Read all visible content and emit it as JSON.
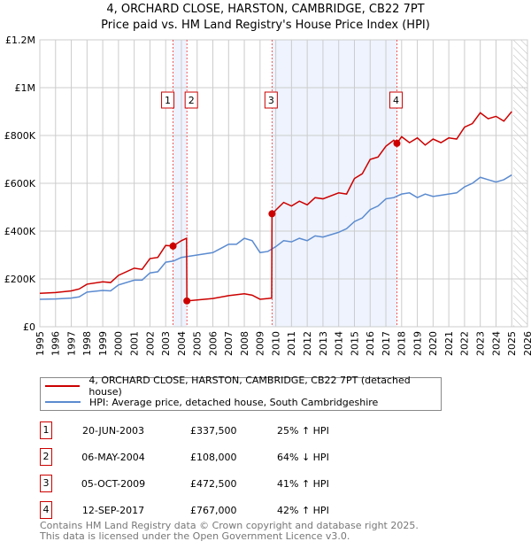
{
  "chart_data": {
    "type": "line",
    "title": "4, ORCHARD CLOSE, HARSTON, CAMBRIDGE, CB22 7PT",
    "subtitle": "Price paid vs. HM Land Registry's House Price Index (HPI)",
    "xlim": [
      1995,
      2026
    ],
    "ylim": [
      0,
      1200000
    ],
    "x_ticks": [
      "1995",
      "1996",
      "1997",
      "1998",
      "1999",
      "2000",
      "2001",
      "2002",
      "2003",
      "2004",
      "2005",
      "2006",
      "2007",
      "2008",
      "2009",
      "2010",
      "2011",
      "2012",
      "2013",
      "2014",
      "2015",
      "2016",
      "2017",
      "2018",
      "2019",
      "2020",
      "2021",
      "2022",
      "2023",
      "2024",
      "2025",
      "2026"
    ],
    "y_ticks": [
      {
        "v": 0,
        "label": "£0"
      },
      {
        "v": 200000,
        "label": "£200K"
      },
      {
        "v": 400000,
        "label": "£400K"
      },
      {
        "v": 600000,
        "label": "£600K"
      },
      {
        "v": 800000,
        "label": "£800K"
      },
      {
        "v": 1000000,
        "label": "£1M"
      },
      {
        "v": 1200000,
        "label": "£1.2M"
      }
    ],
    "series": [
      {
        "name": "4, ORCHARD CLOSE, HARSTON, CAMBRIDGE, CB22 7PT (detached house)",
        "color": "#cc0000",
        "x": [
          1995,
          1996,
          1997,
          1997.5,
          1998,
          1999,
          1999.5,
          2000,
          2001,
          2001.5,
          2002,
          2002.5,
          2003,
          2003.47,
          2004,
          2004.33,
          2004.35,
          2005,
          2006,
          2007,
          2008,
          2008.5,
          2009,
          2009.5,
          2009.74,
          2009.76,
          2010.5,
          2011,
          2011.5,
          2012,
          2012.5,
          2013,
          2014,
          2014.5,
          2015,
          2015.5,
          2016,
          2016.5,
          2017,
          2017.5,
          2017.7,
          2018,
          2018.5,
          2019,
          2019.5,
          2020,
          2020.5,
          2021,
          2021.5,
          2022,
          2022.5,
          2023,
          2023.5,
          2024,
          2024.5,
          2025
        ],
        "y": [
          140000,
          143000,
          150000,
          158000,
          178000,
          188000,
          185000,
          215000,
          245000,
          240000,
          285000,
          290000,
          340000,
          337500,
          360000,
          370000,
          108000,
          112000,
          118000,
          130000,
          138000,
          132000,
          115000,
          118000,
          120000,
          472500,
          520000,
          505000,
          525000,
          510000,
          540000,
          535000,
          560000,
          555000,
          620000,
          640000,
          700000,
          710000,
          755000,
          780000,
          767000,
          795000,
          770000,
          790000,
          760000,
          785000,
          770000,
          790000,
          785000,
          835000,
          850000,
          895000,
          870000,
          880000,
          860000,
          900000
        ]
      },
      {
        "name": "HPI: Average price, detached house, South Cambridgeshire",
        "color": "#5b8bd0",
        "x": [
          1995,
          1996,
          1997,
          1997.5,
          1998,
          1999,
          1999.5,
          2000,
          2001,
          2001.5,
          2002,
          2002.5,
          2003,
          2003.5,
          2004,
          2005,
          2006,
          2007,
          2007.5,
          2008,
          2008.5,
          2009,
          2009.5,
          2010,
          2010.5,
          2011,
          2011.5,
          2012,
          2012.5,
          2013,
          2014,
          2014.5,
          2015,
          2015.5,
          2016,
          2016.5,
          2017,
          2017.5,
          2018,
          2018.5,
          2019,
          2019.5,
          2020,
          2020.5,
          2021,
          2021.5,
          2022,
          2022.5,
          2023,
          2023.5,
          2024,
          2024.5,
          2025
        ],
        "y": [
          115000,
          116000,
          120000,
          125000,
          145000,
          152000,
          150000,
          175000,
          195000,
          195000,
          225000,
          230000,
          270000,
          275000,
          290000,
          300000,
          310000,
          345000,
          345000,
          370000,
          360000,
          310000,
          315000,
          335000,
          360000,
          355000,
          370000,
          360000,
          380000,
          375000,
          395000,
          410000,
          440000,
          455000,
          490000,
          505000,
          535000,
          540000,
          555000,
          560000,
          540000,
          555000,
          545000,
          550000,
          555000,
          560000,
          585000,
          600000,
          625000,
          615000,
          605000,
          615000,
          635000
        ]
      }
    ],
    "sales": [
      {
        "label": "1",
        "x": 2003.47,
        "y": 337500
      },
      {
        "label": "2",
        "x": 2004.35,
        "y": 108000
      },
      {
        "label": "3",
        "x": 2009.76,
        "y": 472500
      },
      {
        "label": "4",
        "x": 2017.7,
        "y": 767000
      }
    ],
    "shaded_ranges": [
      [
        2003.47,
        2004.35
      ],
      [
        2009.76,
        2017.7
      ]
    ],
    "hatched_after": 2025.1
  },
  "title": "4, ORCHARD CLOSE, HARSTON, CAMBRIDGE, CB22 7PT",
  "subtitle": "Price paid vs. HM Land Registry's House Price Index (HPI)",
  "legend": [
    "4, ORCHARD CLOSE, HARSTON, CAMBRIDGE, CB22 7PT (detached house)",
    "HPI: Average price, detached house, South Cambridgeshire"
  ],
  "transactions": [
    {
      "num": "1",
      "date": "20-JUN-2003",
      "price": "£337,500",
      "hpi": "25% ↑ HPI"
    },
    {
      "num": "2",
      "date": "06-MAY-2004",
      "price": "£108,000",
      "hpi": "64% ↓ HPI"
    },
    {
      "num": "3",
      "date": "05-OCT-2009",
      "price": "£472,500",
      "hpi": "41% ↑ HPI"
    },
    {
      "num": "4",
      "date": "12-SEP-2017",
      "price": "£767,000",
      "hpi": "42% ↑ HPI"
    }
  ],
  "footer": [
    "Contains HM Land Registry data © Crown copyright and database right 2025.",
    "This data is licensed under the Open Government Licence v3.0."
  ]
}
